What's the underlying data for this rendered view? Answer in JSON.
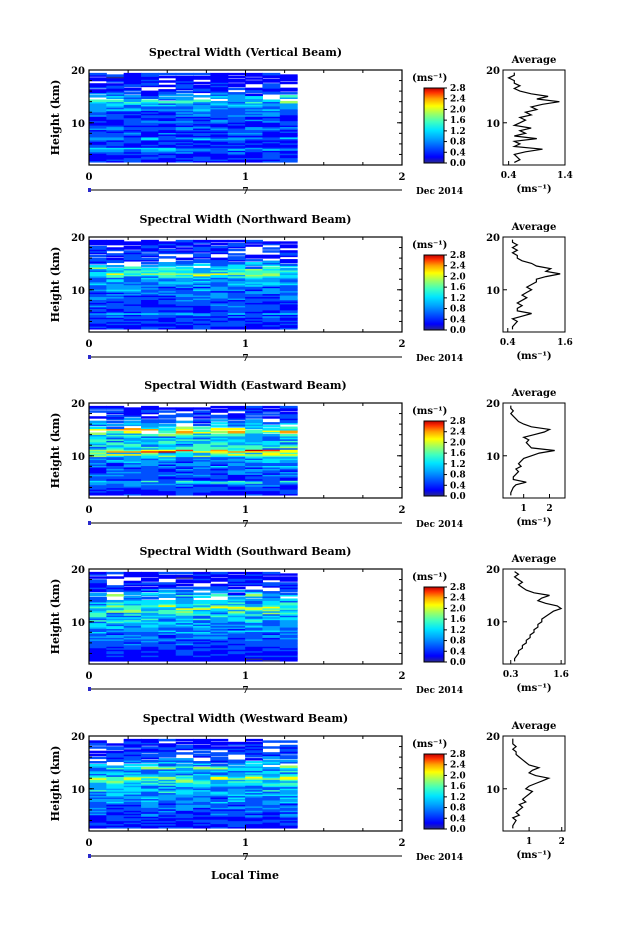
{
  "figure": {
    "x_axis_label": "Local Time",
    "date_label": "7",
    "month_label": "Dec 2014",
    "colorbar_unit": "(ms⁻¹)",
    "avg_title": "Average",
    "avg_unit": "(ms⁻¹)",
    "y_axis_label": "Height (km)",
    "colormap": [
      "#2a2a8c",
      "#0000ff",
      "#0050ff",
      "#00a0ff",
      "#00e5ff",
      "#40ffbf",
      "#a0ff60",
      "#ffff00",
      "#ffa000",
      "#ff3000",
      "#c00000"
    ]
  },
  "chart_data": [
    {
      "type": "heatmap",
      "title": "Spectral Width (Vertical Beam)",
      "xlabel": "Local Time",
      "ylabel": "Height (km)",
      "xlim": [
        0,
        2
      ],
      "ylim": [
        2,
        20
      ],
      "x_ticks": [
        "0",
        "1",
        "2"
      ],
      "y_ticks": [
        "20",
        "10"
      ],
      "data_x_range": [
        0,
        1.33
      ],
      "colorbar_ticks": [
        "2.8",
        "2.4",
        "2.0",
        "1.6",
        "1.2",
        "0.8",
        "0.4",
        "0.0"
      ],
      "colorbar_range": [
        0,
        2.8
      ],
      "average_profile": {
        "xlim": [
          0.3,
          1.4
        ],
        "x_ticks": [
          "0.4",
          "1.4"
        ],
        "heights": [
          2.5,
          3,
          4,
          4.5,
          5,
          5.5,
          6,
          6.5,
          7,
          7.5,
          8,
          8.5,
          9,
          9.5,
          10,
          10.5,
          11,
          11.5,
          12,
          12.5,
          13,
          13.5,
          14,
          14.5,
          15,
          15.5,
          16,
          16.5,
          17,
          17.5,
          18,
          18.5,
          19,
          19.5
        ],
        "values": [
          0.5,
          0.6,
          0.5,
          0.7,
          1.0,
          0.5,
          0.6,
          0.5,
          0.9,
          0.5,
          0.7,
          0.6,
          0.8,
          0.5,
          0.6,
          0.7,
          0.6,
          0.8,
          0.7,
          0.9,
          0.8,
          1.0,
          1.3,
          0.9,
          1.1,
          0.8,
          0.6,
          0.5,
          0.6,
          0.5,
          0.5,
          0.4,
          0.5,
          0.5
        ]
      }
    },
    {
      "type": "heatmap",
      "title": "Spectral Width (Northward Beam)",
      "xlabel": "Local Time",
      "ylabel": "Height (km)",
      "xlim": [
        0,
        2
      ],
      "ylim": [
        2,
        20
      ],
      "x_ticks": [
        "0",
        "1",
        "2"
      ],
      "y_ticks": [
        "20",
        "10"
      ],
      "data_x_range": [
        0,
        1.33
      ],
      "colorbar_ticks": [
        "2.8",
        "2.4",
        "2.0",
        "1.6",
        "1.2",
        "0.8",
        "0.4",
        "0.0"
      ],
      "colorbar_range": [
        0,
        2.8
      ],
      "average_profile": {
        "xlim": [
          0.3,
          1.6
        ],
        "x_ticks": [
          "0.4",
          "1.6"
        ],
        "heights": [
          2.5,
          3,
          4,
          4.5,
          5,
          5.5,
          6,
          6.5,
          7,
          7.5,
          8,
          8.5,
          9,
          9.5,
          10,
          10.5,
          11,
          11.5,
          12,
          12.5,
          13,
          13.5,
          14,
          14.5,
          15,
          15.5,
          16,
          16.5,
          17,
          17.5,
          18,
          18.5,
          19,
          19.5
        ],
        "values": [
          0.5,
          0.5,
          0.6,
          0.5,
          0.7,
          0.9,
          0.6,
          0.6,
          0.7,
          0.6,
          0.7,
          0.8,
          0.7,
          0.8,
          0.9,
          0.8,
          0.9,
          1.0,
          1.0,
          1.2,
          1.5,
          1.2,
          1.3,
          1.0,
          0.9,
          0.7,
          0.6,
          0.6,
          0.5,
          0.6,
          0.5,
          0.6,
          0.5,
          0.5
        ]
      }
    },
    {
      "type": "heatmap",
      "title": "Spectral Width (Eastward Beam)",
      "xlabel": "Local Time",
      "ylabel": "Height (km)",
      "xlim": [
        0,
        2
      ],
      "ylim": [
        2,
        20
      ],
      "x_ticks": [
        "0",
        "1",
        "2"
      ],
      "y_ticks": [
        "20",
        "10"
      ],
      "data_x_range": [
        0,
        1.33
      ],
      "colorbar_ticks": [
        "2.8",
        "2.4",
        "2.0",
        "1.6",
        "1.2",
        "0.8",
        "0.4",
        "0.0"
      ],
      "colorbar_range": [
        0,
        2.8
      ],
      "average_profile": {
        "xlim": [
          0.2,
          2.6
        ],
        "x_ticks": [
          "1",
          "2"
        ],
        "heights": [
          2.5,
          3,
          4,
          4.5,
          5,
          5.5,
          6,
          6.5,
          7,
          7.5,
          8,
          8.5,
          9,
          9.5,
          10,
          10.5,
          11,
          11.5,
          12,
          12.5,
          13,
          13.5,
          14,
          14.5,
          15,
          15.5,
          16,
          16.5,
          17,
          17.5,
          18,
          18.5,
          19,
          19.5
        ],
        "values": [
          0.5,
          0.5,
          0.6,
          0.7,
          1.1,
          0.6,
          0.6,
          0.7,
          0.8,
          0.7,
          0.9,
          0.8,
          0.9,
          1.0,
          1.3,
          1.6,
          2.2,
          1.3,
          1.2,
          1.1,
          1.2,
          1.0,
          1.4,
          1.8,
          2.0,
          1.3,
          1.0,
          0.8,
          0.7,
          0.6,
          0.5,
          0.6,
          0.5,
          0.5
        ]
      }
    },
    {
      "type": "heatmap",
      "title": "Spectral Width (Southward Beam)",
      "xlabel": "Local Time",
      "ylabel": "Height (km)",
      "xlim": [
        0,
        2
      ],
      "ylim": [
        2,
        20
      ],
      "x_ticks": [
        "0",
        "1",
        "2"
      ],
      "y_ticks": [
        "20",
        "10"
      ],
      "data_x_range": [
        0,
        1.33
      ],
      "colorbar_ticks": [
        "2.8",
        "2.4",
        "2.0",
        "1.6",
        "1.2",
        "0.8",
        "0.4",
        "0.0"
      ],
      "colorbar_range": [
        0,
        2.8
      ],
      "average_profile": {
        "xlim": [
          0.1,
          1.7
        ],
        "x_ticks": [
          "0.3",
          "1.6"
        ],
        "heights": [
          2.5,
          3,
          4,
          4.5,
          5,
          5.5,
          6,
          6.5,
          7,
          7.5,
          8,
          8.5,
          9,
          9.5,
          10,
          10.5,
          11,
          11.5,
          12,
          12.5,
          13,
          13.5,
          14,
          14.5,
          15,
          15.5,
          16,
          16.5,
          17,
          17.5,
          18,
          18.5,
          19,
          19.5
        ],
        "values": [
          0.4,
          0.4,
          0.5,
          0.5,
          0.6,
          0.6,
          0.7,
          0.7,
          0.8,
          0.8,
          0.9,
          0.9,
          1.0,
          1.0,
          1.1,
          1.1,
          1.2,
          1.3,
          1.4,
          1.6,
          1.5,
          1.2,
          1.0,
          1.1,
          1.3,
          0.9,
          0.7,
          0.6,
          0.5,
          0.6,
          0.5,
          0.4,
          0.5,
          0.4
        ]
      }
    },
    {
      "type": "heatmap",
      "title": "Spectral Width (Westward Beam)",
      "xlabel": "Local Time",
      "ylabel": "Height (km)",
      "xlim": [
        0,
        2
      ],
      "ylim": [
        2,
        20
      ],
      "x_ticks": [
        "0",
        "1",
        "2"
      ],
      "y_ticks": [
        "20",
        "10"
      ],
      "data_x_range": [
        0,
        1.33
      ],
      "colorbar_ticks": [
        "2.8",
        "2.4",
        "2.0",
        "1.6",
        "1.2",
        "0.8",
        "0.4",
        "0.0"
      ],
      "colorbar_range": [
        0,
        2.8
      ],
      "average_profile": {
        "xlim": [
          0.2,
          2.1
        ],
        "x_ticks": [
          "1",
          "2"
        ],
        "heights": [
          2.5,
          3,
          4,
          4.5,
          5,
          5.5,
          6,
          6.5,
          7,
          7.5,
          8,
          8.5,
          9,
          9.5,
          10,
          10.5,
          11,
          11.5,
          12,
          12.5,
          13,
          13.5,
          14,
          14.5,
          15,
          15.5,
          16,
          16.5,
          17,
          17.5,
          18,
          18.5,
          19,
          19.5
        ],
        "values": [
          0.5,
          0.5,
          0.6,
          0.5,
          0.7,
          0.6,
          0.7,
          0.8,
          0.7,
          0.9,
          0.8,
          0.9,
          1.0,
          1.1,
          0.9,
          1.0,
          1.2,
          1.4,
          1.6,
          1.2,
          1.0,
          1.1,
          1.3,
          1.0,
          0.9,
          0.8,
          0.7,
          0.6,
          0.6,
          0.5,
          0.6,
          0.5,
          0.5,
          0.5
        ]
      }
    }
  ]
}
